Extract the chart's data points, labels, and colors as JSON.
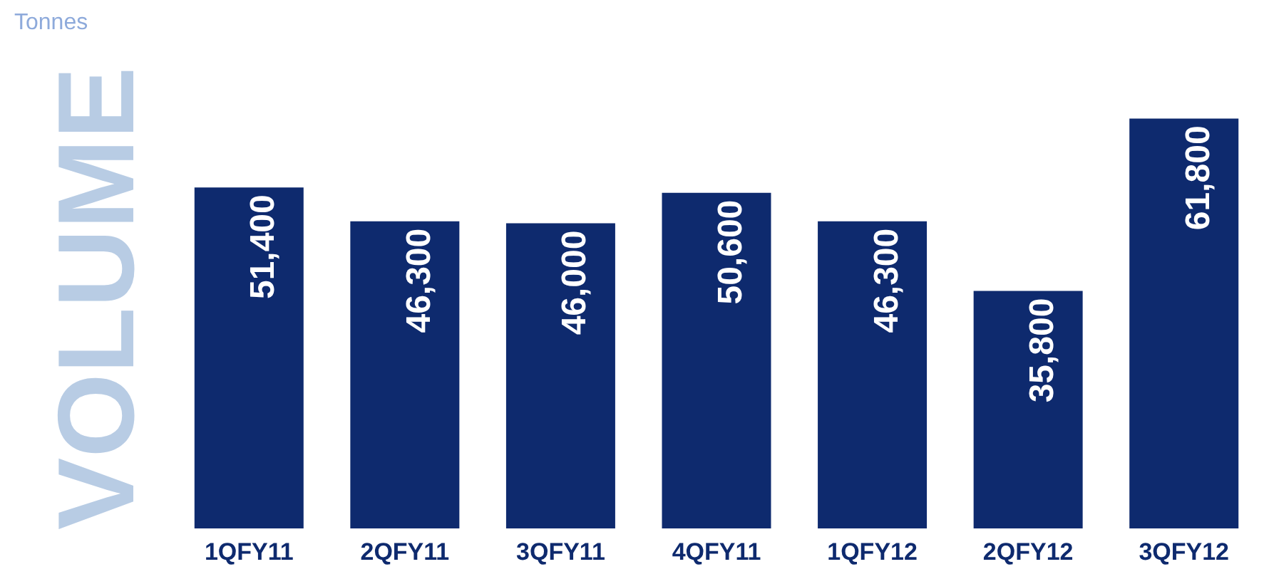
{
  "chart_data": {
    "type": "bar",
    "ylabel": "VOLUME",
    "annotations": [
      "Tonnes"
    ],
    "categories": [
      "1QFY11",
      "2QFY11",
      "3QFY11",
      "4QFY11",
      "1QFY12",
      "2QFY12",
      "3QFY12"
    ],
    "values": [
      51400,
      46300,
      46000,
      50600,
      46300,
      35800,
      61800
    ],
    "value_labels": [
      "51,400",
      "46,300",
      "46,000",
      "50,600",
      "46,300",
      "35,800",
      "61,800"
    ],
    "color": "#0e2a6e",
    "grid": false
  }
}
